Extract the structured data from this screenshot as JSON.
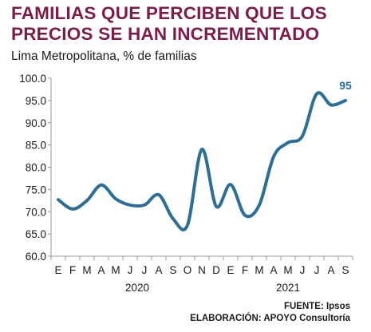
{
  "chart_data": {
    "type": "line",
    "title": "FAMILIAS QUE PERCIBEN QUE LOS PRECIOS SE HAN INCREMENTADO",
    "subtitle": "Lima Metropolitana, % de familias",
    "x": [
      "E",
      "F",
      "M",
      "A",
      "M",
      "J",
      "J",
      "A",
      "S",
      "O",
      "N",
      "D",
      "E",
      "F",
      "M",
      "A",
      "M",
      "J",
      "J",
      "A",
      "S"
    ],
    "year_labels": [
      "2020",
      "2021"
    ],
    "series": [
      {
        "values": [
          72.7,
          70.6,
          72.5,
          76.0,
          72.9,
          71.5,
          71.5,
          73.8,
          68.4,
          67.0,
          84.0,
          71.2,
          76.1,
          69.2,
          71.5,
          82.4,
          85.5,
          87.0,
          96.5,
          94.0,
          95.0
        ]
      }
    ],
    "end_label": "95",
    "ylim": [
      60,
      100
    ],
    "yticks": [
      "60.0",
      "65.0",
      "70.0",
      "75.0",
      "80.0",
      "85.0",
      "90.0",
      "95.0",
      "100.0"
    ],
    "grid": false,
    "line_color": "#2d6e96"
  },
  "source": "FUENTE: Ipsos",
  "elaboration": "ELABORACIÓN: APOYO Consultoría"
}
